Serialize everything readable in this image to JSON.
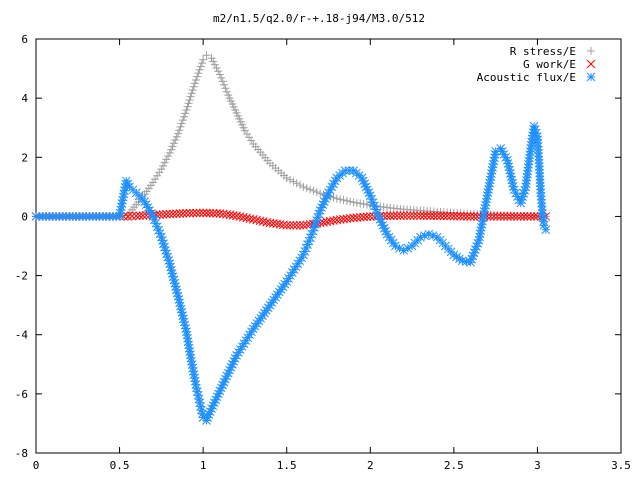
{
  "chart_data": {
    "type": "scatter",
    "title": "m2/n1.5/q2.0/r-+.18-j94/M3.0/512",
    "xlabel": "",
    "ylabel": "",
    "xlim": [
      0,
      3.5
    ],
    "ylim": [
      -8,
      6
    ],
    "x_ticks": [
      "0",
      "0.5",
      "1",
      "1.5",
      "2",
      "2.5",
      "3",
      "3.5"
    ],
    "y_ticks": [
      "6",
      "4",
      "2",
      "0",
      "-2",
      "-4",
      "-6",
      "-8"
    ],
    "grid": false,
    "legend_position": "top-right",
    "series": [
      {
        "name": "R stress/E",
        "marker": "+",
        "color": "#a0a0a0",
        "points": [
          [
            0.0,
            0.0
          ],
          [
            0.1,
            0.0
          ],
          [
            0.2,
            0.0
          ],
          [
            0.3,
            0.0
          ],
          [
            0.4,
            0.0
          ],
          [
            0.5,
            0.0
          ],
          [
            0.55,
            0.05
          ],
          [
            0.6,
            0.4
          ],
          [
            0.65,
            0.75
          ],
          [
            0.7,
            1.15
          ],
          [
            0.75,
            1.6
          ],
          [
            0.8,
            2.15
          ],
          [
            0.85,
            2.8
          ],
          [
            0.9,
            3.6
          ],
          [
            0.95,
            4.5
          ],
          [
            1.0,
            5.3
          ],
          [
            1.02,
            5.45
          ],
          [
            1.05,
            5.35
          ],
          [
            1.1,
            4.8
          ],
          [
            1.15,
            4.1
          ],
          [
            1.2,
            3.5
          ],
          [
            1.25,
            2.9
          ],
          [
            1.3,
            2.45
          ],
          [
            1.4,
            1.8
          ],
          [
            1.5,
            1.3
          ],
          [
            1.6,
            1.0
          ],
          [
            1.7,
            0.78
          ],
          [
            1.8,
            0.6
          ],
          [
            1.9,
            0.48
          ],
          [
            2.0,
            0.38
          ],
          [
            2.1,
            0.3
          ],
          [
            2.2,
            0.24
          ],
          [
            2.3,
            0.2
          ],
          [
            2.4,
            0.16
          ],
          [
            2.5,
            0.12
          ],
          [
            2.6,
            0.09
          ],
          [
            2.7,
            0.06
          ],
          [
            2.8,
            0.04
          ],
          [
            2.9,
            0.02
          ],
          [
            3.0,
            0.01
          ],
          [
            3.05,
            0.0
          ]
        ]
      },
      {
        "name": "G work/E",
        "marker": "x",
        "color": "#ff0000",
        "points": [
          [
            0.0,
            0.0
          ],
          [
            0.1,
            0.0
          ],
          [
            0.2,
            0.0
          ],
          [
            0.3,
            0.0
          ],
          [
            0.4,
            0.0
          ],
          [
            0.5,
            0.0
          ],
          [
            0.55,
            0.0
          ],
          [
            0.6,
            0.02
          ],
          [
            0.7,
            0.05
          ],
          [
            0.8,
            0.08
          ],
          [
            0.9,
            0.11
          ],
          [
            1.0,
            0.12
          ],
          [
            1.1,
            0.1
          ],
          [
            1.2,
            0.02
          ],
          [
            1.3,
            -0.1
          ],
          [
            1.4,
            -0.22
          ],
          [
            1.5,
            -0.3
          ],
          [
            1.6,
            -0.3
          ],
          [
            1.7,
            -0.22
          ],
          [
            1.8,
            -0.12
          ],
          [
            1.9,
            -0.05
          ],
          [
            2.0,
            0.0
          ],
          [
            2.1,
            0.02
          ],
          [
            2.2,
            0.03
          ],
          [
            2.3,
            0.03
          ],
          [
            2.4,
            0.02
          ],
          [
            2.5,
            0.01
          ],
          [
            2.6,
            0.0
          ],
          [
            2.7,
            0.0
          ],
          [
            2.8,
            0.0
          ],
          [
            2.9,
            0.0
          ],
          [
            3.0,
            0.0
          ],
          [
            3.05,
            0.0
          ]
        ]
      },
      {
        "name": "Acoustic flux/E",
        "marker": "*",
        "color": "#1e90ff",
        "points": [
          [
            0.0,
            0.0
          ],
          [
            0.1,
            0.0
          ],
          [
            0.2,
            0.0
          ],
          [
            0.3,
            0.0
          ],
          [
            0.4,
            0.0
          ],
          [
            0.5,
            0.0
          ],
          [
            0.54,
            1.2
          ],
          [
            0.56,
            1.0
          ],
          [
            0.6,
            0.8
          ],
          [
            0.65,
            0.5
          ],
          [
            0.7,
            0.0
          ],
          [
            0.75,
            -0.7
          ],
          [
            0.8,
            -1.6
          ],
          [
            0.85,
            -2.7
          ],
          [
            0.9,
            -3.9
          ],
          [
            0.93,
            -4.9
          ],
          [
            0.96,
            -5.8
          ],
          [
            0.98,
            -6.3
          ],
          [
            1.0,
            -6.8
          ],
          [
            1.02,
            -6.9
          ],
          [
            1.05,
            -6.5
          ],
          [
            1.1,
            -5.9
          ],
          [
            1.15,
            -5.3
          ],
          [
            1.2,
            -4.7
          ],
          [
            1.3,
            -3.8
          ],
          [
            1.4,
            -3.0
          ],
          [
            1.5,
            -2.2
          ],
          [
            1.6,
            -1.3
          ],
          [
            1.65,
            -0.6
          ],
          [
            1.7,
            0.2
          ],
          [
            1.75,
            0.8
          ],
          [
            1.8,
            1.3
          ],
          [
            1.85,
            1.55
          ],
          [
            1.9,
            1.55
          ],
          [
            1.95,
            1.3
          ],
          [
            2.0,
            0.7
          ],
          [
            2.05,
            0.0
          ],
          [
            2.1,
            -0.6
          ],
          [
            2.15,
            -1.0
          ],
          [
            2.2,
            -1.15
          ],
          [
            2.25,
            -1.0
          ],
          [
            2.3,
            -0.7
          ],
          [
            2.35,
            -0.6
          ],
          [
            2.4,
            -0.7
          ],
          [
            2.45,
            -1.0
          ],
          [
            2.5,
            -1.3
          ],
          [
            2.55,
            -1.5
          ],
          [
            2.6,
            -1.55
          ],
          [
            2.65,
            -0.8
          ],
          [
            2.7,
            0.7
          ],
          [
            2.75,
            2.2
          ],
          [
            2.78,
            2.3
          ],
          [
            2.82,
            1.9
          ],
          [
            2.86,
            0.9
          ],
          [
            2.9,
            0.45
          ],
          [
            2.93,
            1.0
          ],
          [
            2.96,
            2.3
          ],
          [
            2.98,
            3.05
          ],
          [
            3.0,
            2.7
          ],
          [
            3.01,
            1.8
          ],
          [
            3.02,
            0.8
          ],
          [
            3.03,
            0.1
          ],
          [
            3.04,
            -0.3
          ],
          [
            3.05,
            -0.45
          ]
        ]
      }
    ]
  }
}
